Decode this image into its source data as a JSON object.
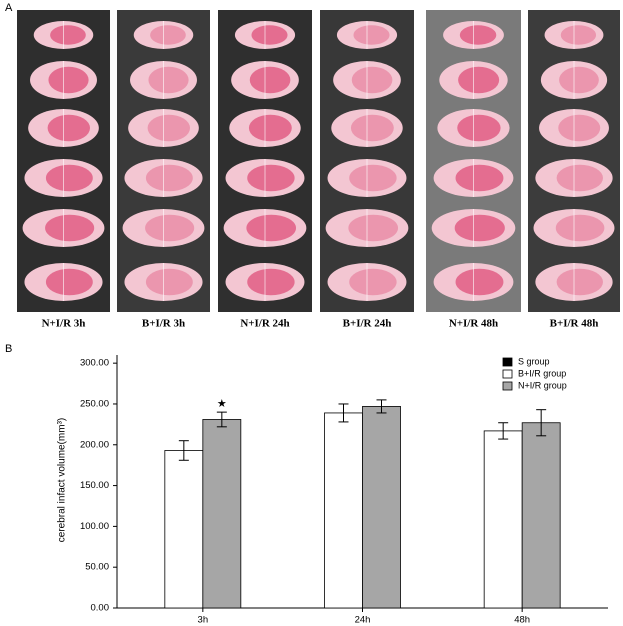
{
  "panel_a": {
    "letter": "A",
    "labels": [
      "N+I/R 3h",
      "B+I/R 3h",
      "N+I/R 24h",
      "B+I/R 24h",
      "N+I/R 48h",
      "B+I/R 48h"
    ]
  },
  "chart_data": {
    "type": "bar",
    "panel_letter": "B",
    "y_label": "cerebral infact volume(mm³)",
    "categories": [
      "3h",
      "24h",
      "48h"
    ],
    "series": [
      {
        "name": "S group",
        "color": "#000000",
        "values": [
          0,
          0,
          0
        ],
        "errors": [
          0,
          0,
          0
        ]
      },
      {
        "name": "B+I/R group",
        "color": "#ffffff",
        "values": [
          193,
          239,
          217
        ],
        "errors": [
          12,
          11,
          10
        ]
      },
      {
        "name": "N+I/R group",
        "color": "#a6a6a6",
        "values": [
          231,
          247,
          227
        ],
        "errors": [
          9,
          8,
          16
        ]
      }
    ],
    "annotation": "★",
    "ylim": [
      0,
      310
    ],
    "yticks": [
      {
        "value": 0,
        "label": "0.00"
      },
      {
        "value": 50,
        "label": "50.00"
      },
      {
        "value": 100,
        "label": "100.00"
      },
      {
        "value": 150,
        "label": "150.00"
      },
      {
        "value": 200,
        "label": "200.00"
      },
      {
        "value": 250,
        "label": "250.00"
      },
      {
        "value": 300,
        "label": "300.00"
      }
    ],
    "grid": false
  }
}
